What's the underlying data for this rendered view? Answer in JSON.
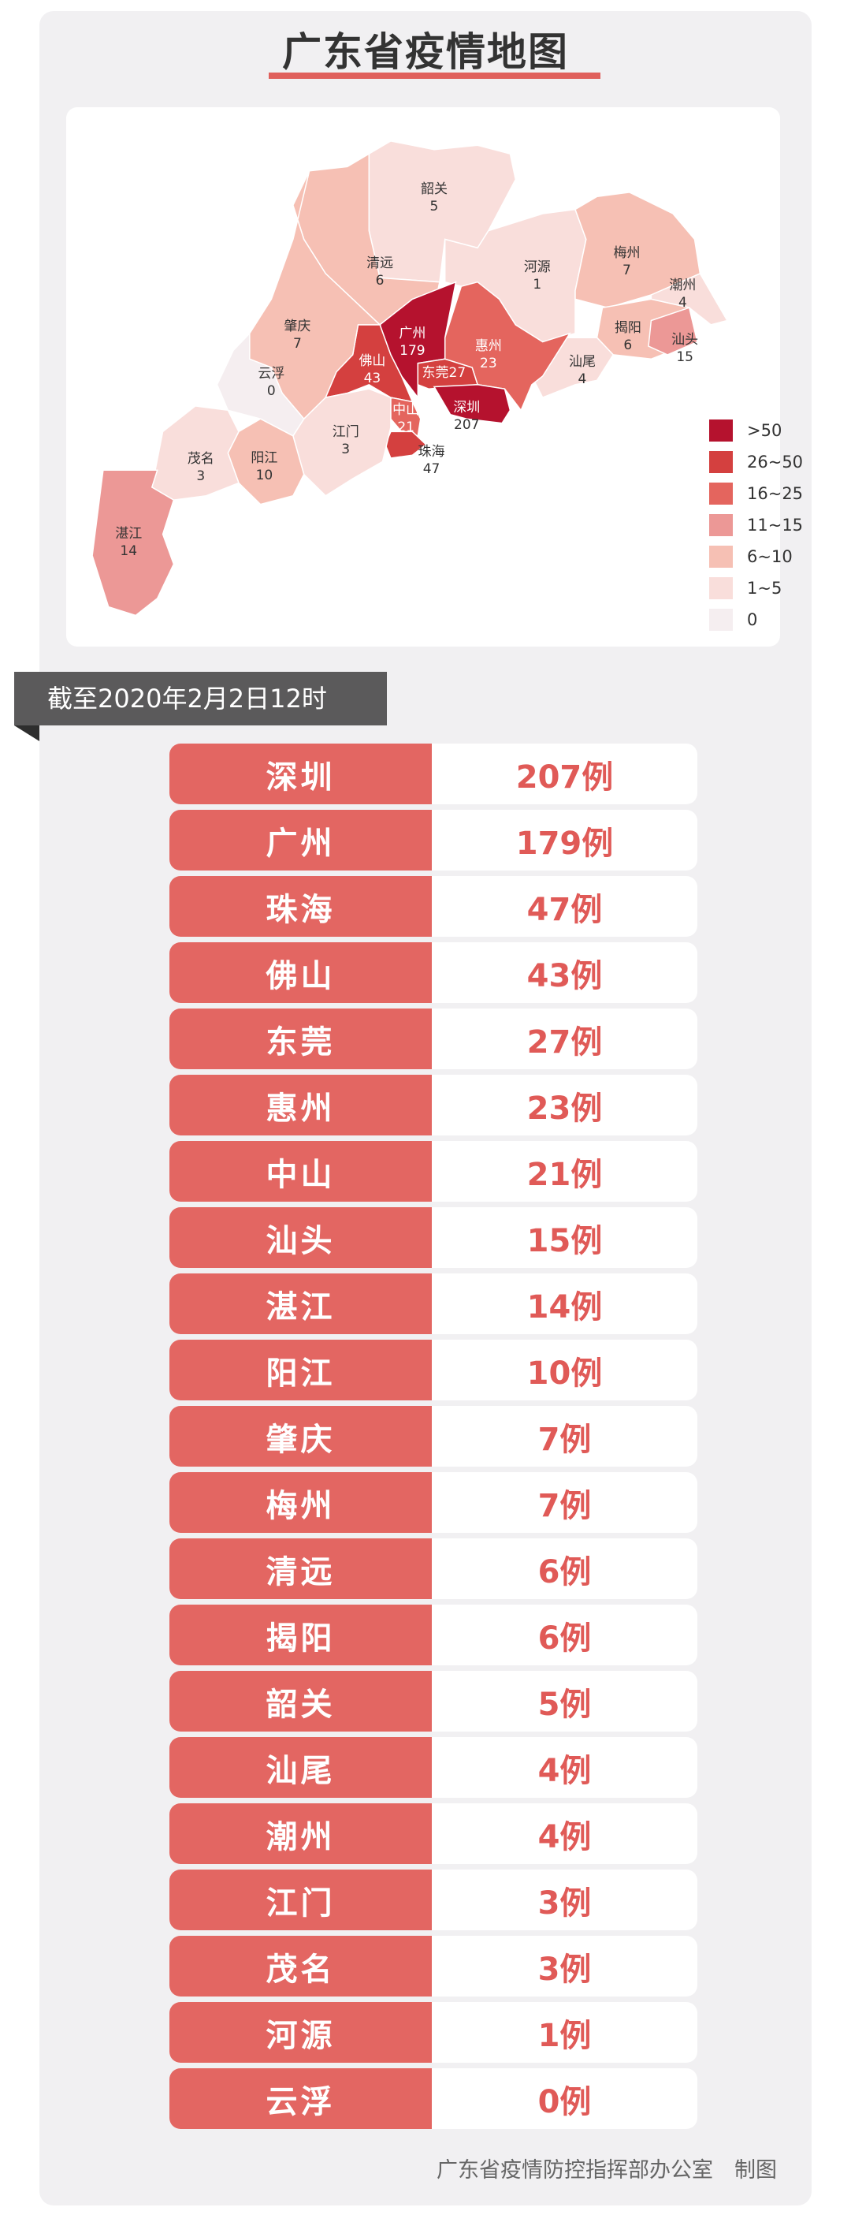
{
  "title": "广东省疫情地图",
  "as_of": "截至2020年2月2日12时",
  "footer": "广东省疫情防控指挥部办公室　制图",
  "legend": [
    {
      "label": ">50",
      "color": "#b5122e"
    },
    {
      "label": "26~50",
      "color": "#d4403f"
    },
    {
      "label": "16~25",
      "color": "#e4655e"
    },
    {
      "label": "11~15",
      "color": "#ec9896"
    },
    {
      "label": "6~10",
      "color": "#f6c0b4"
    },
    {
      "label": "1~5",
      "color": "#f9dedb"
    },
    {
      "label": "0",
      "color": "#f5eef0"
    }
  ],
  "regions": [
    {
      "name": "韶关",
      "count": "5"
    },
    {
      "name": "清远",
      "count": "6"
    },
    {
      "name": "河源",
      "count": "1"
    },
    {
      "name": "梅州",
      "count": "7"
    },
    {
      "name": "潮州",
      "count": "4"
    },
    {
      "name": "揭阳",
      "count": "6"
    },
    {
      "name": "汕头",
      "count": "15"
    },
    {
      "name": "汕尾",
      "count": "4"
    },
    {
      "name": "惠州",
      "count": "23"
    },
    {
      "name": "广州",
      "count": "179"
    },
    {
      "name": "东莞",
      "count": "27"
    },
    {
      "name": "深圳",
      "count": "207"
    },
    {
      "name": "佛山",
      "count": "43"
    },
    {
      "name": "中山",
      "count": "21"
    },
    {
      "name": "珠海",
      "count": "47"
    },
    {
      "name": "江门",
      "count": "3"
    },
    {
      "name": "肇庆",
      "count": "7"
    },
    {
      "name": "云浮",
      "count": "0"
    },
    {
      "name": "阳江",
      "count": "10"
    },
    {
      "name": "茂名",
      "count": "3"
    },
    {
      "name": "湛江",
      "count": "14"
    }
  ],
  "table": [
    {
      "city": "深圳",
      "count": "207例"
    },
    {
      "city": "广州",
      "count": "179例"
    },
    {
      "city": "珠海",
      "count": "47例"
    },
    {
      "city": "佛山",
      "count": "43例"
    },
    {
      "city": "东莞",
      "count": "27例"
    },
    {
      "city": "惠州",
      "count": "23例"
    },
    {
      "city": "中山",
      "count": "21例"
    },
    {
      "city": "汕头",
      "count": "15例"
    },
    {
      "city": "湛江",
      "count": "14例"
    },
    {
      "city": "阳江",
      "count": "10例"
    },
    {
      "city": "肇庆",
      "count": "7例"
    },
    {
      "city": "梅州",
      "count": "7例"
    },
    {
      "city": "清远",
      "count": "6例"
    },
    {
      "city": "揭阳",
      "count": "6例"
    },
    {
      "city": "韶关",
      "count": "5例"
    },
    {
      "city": "汕尾",
      "count": "4例"
    },
    {
      "city": "潮州",
      "count": "4例"
    },
    {
      "city": "江门",
      "count": "3例"
    },
    {
      "city": "茂名",
      "count": "3例"
    },
    {
      "city": "河源",
      "count": "1例"
    },
    {
      "city": "云浮",
      "count": "0例"
    }
  ]
}
